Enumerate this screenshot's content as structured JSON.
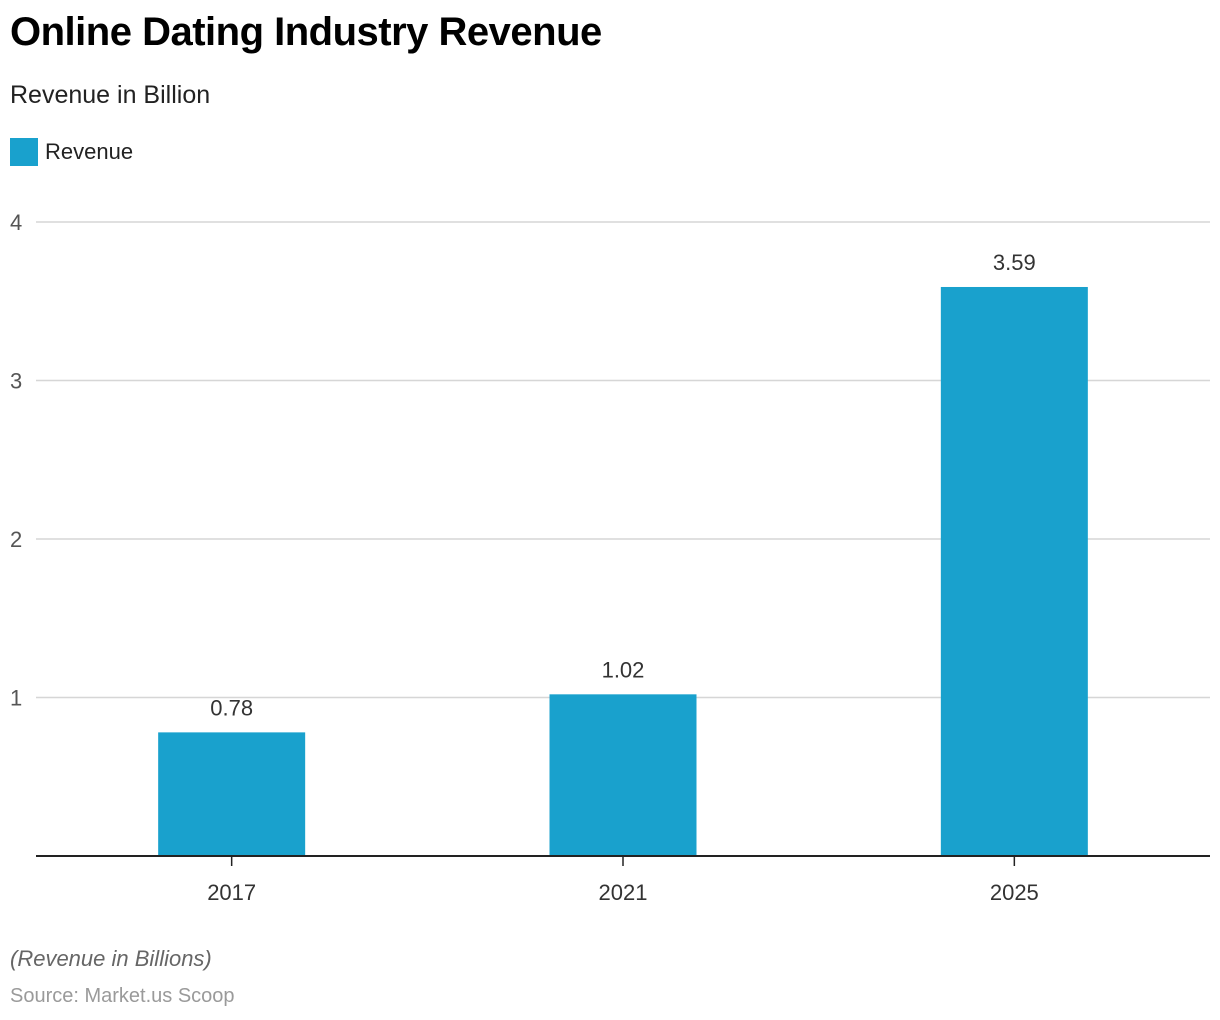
{
  "header": {
    "title": "Online Dating Industry Revenue",
    "subtitle": "Revenue in Billion"
  },
  "legend": {
    "label": "Revenue"
  },
  "footer": {
    "note": "(Revenue in Billions)",
    "source": "Source: Market.us Scoop"
  },
  "colors": {
    "bar": "#19a1cd",
    "grid": "#d6d6d6",
    "axis": "#222222",
    "tick_text": "#555555",
    "label_text": "#333333"
  },
  "chart_data": {
    "type": "bar",
    "title": "Online Dating Industry Revenue",
    "subtitle": "Revenue in Billion",
    "categories": [
      "2017",
      "2021",
      "2025"
    ],
    "series": [
      {
        "name": "Revenue",
        "values": [
          0.78,
          1.02,
          3.59
        ],
        "labels": [
          "0.78",
          "1.02",
          "3.59"
        ]
      }
    ],
    "ylim": [
      0,
      4
    ],
    "yticks": [
      "1",
      "2",
      "3",
      "4"
    ],
    "grid": true,
    "legend_position": "top-left"
  }
}
